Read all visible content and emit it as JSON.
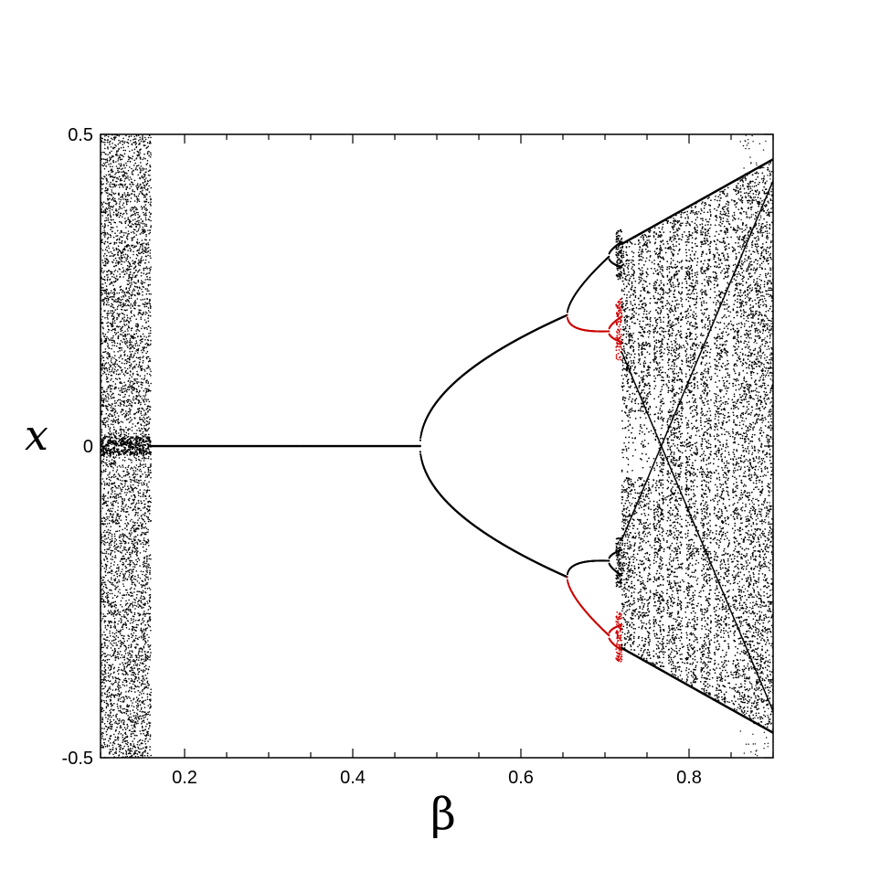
{
  "chart_data": {
    "type": "scatter",
    "title": "",
    "xlabel": "β",
    "ylabel": "x",
    "xlim": [
      0.1,
      0.9
    ],
    "ylim": [
      -0.5,
      0.5
    ],
    "x_ticks": [
      {
        "value": 0.2,
        "label": "0.2"
      },
      {
        "value": 0.4,
        "label": "0.4"
      },
      {
        "value": 0.6,
        "label": "0.6"
      },
      {
        "value": 0.8,
        "label": "0.8"
      }
    ],
    "y_ticks": [
      {
        "value": 0.5,
        "label": "0.5"
      },
      {
        "value": 0,
        "label": "0"
      },
      {
        "value": -0.5,
        "label": "-0.5"
      }
    ],
    "x_minor_step": 0.1,
    "y_minor_step": 0.25,
    "grid": false,
    "legend": "none",
    "colors": {
      "points": "#000000",
      "highlight": "#cc0000"
    },
    "regions": [
      {
        "kind": "chaotic_band",
        "beta_range": [
          0.1,
          0.16
        ],
        "x_range": [
          -0.5,
          0.5
        ]
      },
      {
        "kind": "fixed_point",
        "beta_range": [
          0.16,
          0.48
        ],
        "x": 0
      },
      {
        "kind": "period_2_branches",
        "beta_start": 0.48,
        "beta_end": 0.655,
        "x_at_end": [
          0.21,
          -0.21
        ]
      },
      {
        "kind": "period_4_branches",
        "beta_start": 0.655,
        "beta_end": 0.705
      },
      {
        "kind": "period_doubling_cascade",
        "beta_start": 0.705,
        "beta_end": 0.72
      },
      {
        "kind": "highlighted_branches",
        "color": "highlight",
        "beta_range": [
          0.655,
          0.72
        ]
      },
      {
        "kind": "chaotic_wedge",
        "beta_range": [
          0.695,
          0.9
        ],
        "x_envelope_end": [
          0.46,
          -0.46
        ]
      }
    ]
  }
}
